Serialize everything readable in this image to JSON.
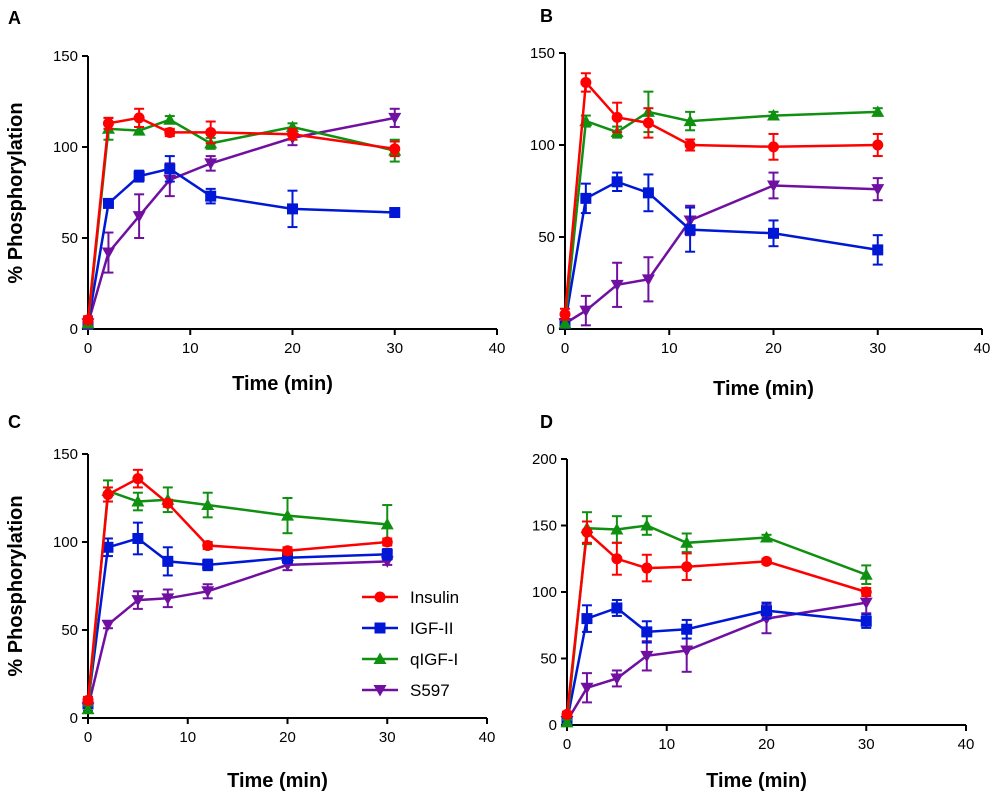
{
  "figure": {
    "ylabel_left": "% Phosphorylation",
    "colors": {
      "Insulin": "#ff0000",
      "IGF-II": "#0018d6",
      "qIGF-I": "#109010",
      "S597": "#7010a0"
    },
    "markers": {
      "Insulin": "circle",
      "IGF-II": "square",
      "qIGF-I": "triangle-up",
      "S597": "triangle-down"
    }
  },
  "legend": {
    "items": [
      {
        "label": "Insulin",
        "series": "Insulin"
      },
      {
        "label": "IGF-II",
        "series": "IGF-II"
      },
      {
        "label": "qIGF-I",
        "series": "qIGF-I"
      },
      {
        "label": "S597",
        "series": "S597"
      }
    ]
  },
  "chart_data": [
    {
      "panel": "A",
      "type": "line",
      "xlabel": "Time (min)",
      "ylabel": "% Phosphorylation",
      "xlim": [
        0,
        40
      ],
      "ylim": [
        0,
        150
      ],
      "xticks": [
        0,
        10,
        20,
        30,
        40
      ],
      "yticks": [
        0,
        50,
        100,
        150
      ],
      "x": [
        0,
        2,
        5,
        8,
        12,
        20,
        30
      ],
      "series": [
        {
          "name": "Insulin",
          "values": [
            5,
            113,
            116,
            108,
            108,
            107,
            99
          ],
          "errors": [
            2,
            3,
            5,
            2,
            6,
            3,
            4
          ]
        },
        {
          "name": "IGF-II",
          "values": [
            3,
            69,
            84,
            88,
            73,
            66,
            64
          ],
          "errors": [
            2,
            2,
            3,
            7,
            4,
            10,
            2
          ]
        },
        {
          "name": "qIGF-I",
          "values": [
            3,
            110,
            109,
            115,
            102,
            111,
            98
          ],
          "errors": [
            2,
            6,
            2,
            2,
            3,
            2,
            6
          ]
        },
        {
          "name": "S597",
          "values": [
            3,
            42,
            62,
            82,
            91,
            105,
            116
          ],
          "errors": [
            3,
            11,
            12,
            9,
            4,
            4,
            5
          ]
        }
      ]
    },
    {
      "panel": "B",
      "type": "line",
      "xlabel": "Time (min)",
      "ylabel": "",
      "xlim": [
        0,
        40
      ],
      "ylim": [
        0,
        150
      ],
      "xticks": [
        0,
        10,
        20,
        30,
        40
      ],
      "yticks": [
        0,
        50,
        100,
        150
      ],
      "x": [
        0,
        2,
        5,
        8,
        12,
        20,
        30
      ],
      "series": [
        {
          "name": "Insulin",
          "values": [
            8,
            134,
            115,
            112,
            100,
            99,
            100
          ],
          "errors": [
            3,
            5,
            8,
            8,
            3,
            7,
            6
          ]
        },
        {
          "name": "IGF-II",
          "values": [
            3,
            71,
            80,
            74,
            54,
            52,
            43
          ],
          "errors": [
            2,
            8,
            5,
            10,
            12,
            7,
            8
          ]
        },
        {
          "name": "qIGF-I",
          "values": [
            3,
            113,
            107,
            118,
            113,
            116,
            118
          ],
          "errors": [
            2,
            3,
            3,
            11,
            5,
            2,
            2
          ]
        },
        {
          "name": "S597",
          "values": [
            3,
            10,
            24,
            27,
            59,
            78,
            76
          ],
          "errors": [
            2,
            8,
            12,
            12,
            8,
            7,
            6
          ]
        }
      ]
    },
    {
      "panel": "C",
      "type": "line",
      "xlabel": "Time (min)",
      "ylabel": "% Phosphorylation",
      "xlim": [
        0,
        40
      ],
      "ylim": [
        0,
        150
      ],
      "xticks": [
        0,
        10,
        20,
        30,
        40
      ],
      "yticks": [
        0,
        50,
        100,
        150
      ],
      "x": [
        0,
        2,
        5,
        8,
        12,
        20,
        30
      ],
      "series": [
        {
          "name": "Insulin",
          "values": [
            10,
            127,
            136,
            122,
            98,
            95,
            100
          ],
          "errors": [
            2,
            4,
            5,
            2,
            2,
            2,
            2
          ]
        },
        {
          "name": "IGF-II",
          "values": [
            8,
            97,
            102,
            89,
            87,
            91,
            93
          ],
          "errors": [
            2,
            5,
            9,
            8,
            3,
            3,
            3
          ]
        },
        {
          "name": "qIGF-I",
          "values": [
            5,
            129,
            123,
            124,
            121,
            115,
            110
          ],
          "errors": [
            2,
            6,
            5,
            7,
            7,
            10,
            11
          ]
        },
        {
          "name": "S597",
          "values": [
            6,
            53,
            67,
            68,
            72,
            87,
            89
          ],
          "errors": [
            2,
            2,
            5,
            5,
            4,
            3,
            2
          ]
        }
      ]
    },
    {
      "panel": "D",
      "type": "line",
      "xlabel": "Time (min)",
      "ylabel": "",
      "xlim": [
        0,
        40
      ],
      "ylim": [
        0,
        200
      ],
      "xticks": [
        0,
        10,
        20,
        30,
        40
      ],
      "yticks": [
        0,
        50,
        100,
        150,
        200
      ],
      "x": [
        0,
        2,
        5,
        8,
        12,
        20,
        30
      ],
      "series": [
        {
          "name": "Insulin",
          "values": [
            8,
            145,
            125,
            118,
            119,
            123,
            100
          ],
          "errors": [
            2,
            8,
            12,
            10,
            10,
            2,
            3
          ]
        },
        {
          "name": "IGF-II",
          "values": [
            3,
            80,
            88,
            70,
            72,
            86,
            78
          ],
          "errors": [
            2,
            10,
            6,
            8,
            7,
            6,
            5
          ]
        },
        {
          "name": "qIGF-I",
          "values": [
            2,
            148,
            147,
            150,
            137,
            141,
            113
          ],
          "errors": [
            2,
            12,
            10,
            7,
            7,
            2,
            7
          ]
        },
        {
          "name": "S597",
          "values": [
            3,
            28,
            35,
            52,
            56,
            80,
            92
          ],
          "errors": [
            2,
            11,
            6,
            11,
            16,
            11,
            8
          ]
        }
      ]
    }
  ]
}
